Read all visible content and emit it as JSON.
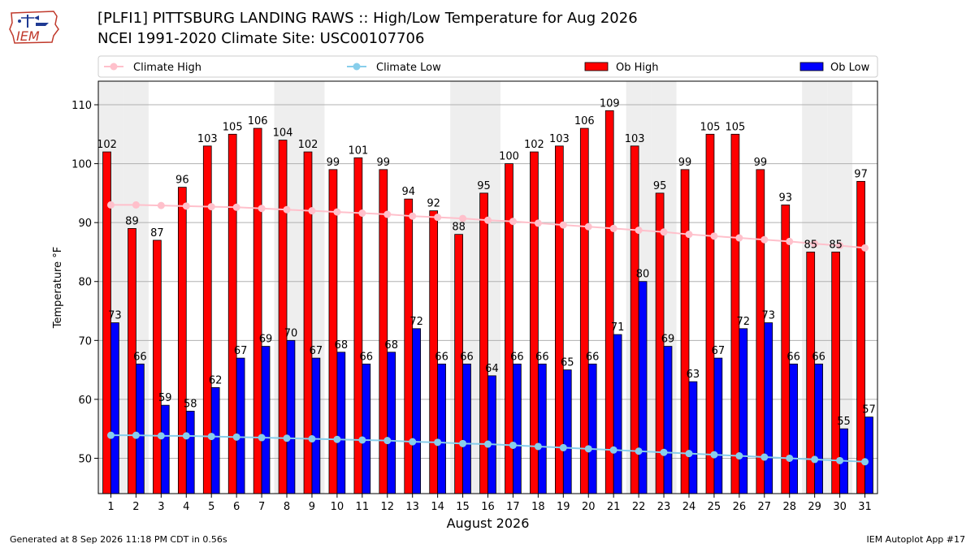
{
  "header": {
    "title_line1": "[PLFI1] PITTSBURG LANDING RAWS :: High/Low Temperature for Aug 2026",
    "title_line2": "NCEI 1991-2020 Climate Site: USC00107706",
    "logo_text": "IEM"
  },
  "footer": {
    "generated": "Generated at 8 Sep 2026 11:18 PM CDT in 0.56s",
    "app": "IEM Autoplot App #17"
  },
  "colors": {
    "ob_high": "#ff0000",
    "ob_low": "#0000ff",
    "climate_high": "#ffc0cb",
    "climate_low": "#87ceeb",
    "weekend_band": "#eeeeee",
    "grid": "#b0b0b0"
  },
  "chart_data": {
    "type": "bar",
    "xlabel": "August 2026",
    "ylabel": "Temperature °F",
    "ylim": [
      44,
      114
    ],
    "yticks": [
      50,
      60,
      70,
      80,
      90,
      100,
      110
    ],
    "grid": true,
    "legend_position": "top",
    "x": [
      1,
      2,
      3,
      4,
      5,
      6,
      7,
      8,
      9,
      10,
      11,
      12,
      13,
      14,
      15,
      16,
      17,
      18,
      19,
      20,
      21,
      22,
      23,
      24,
      25,
      26,
      27,
      28,
      29,
      30,
      31
    ],
    "shaded_days": [
      1,
      2,
      8,
      9,
      15,
      16,
      22,
      23,
      29,
      30
    ],
    "series": [
      {
        "name": "Climate High",
        "type": "line",
        "values": [
          93.0,
          93.0,
          92.9,
          92.8,
          92.7,
          92.6,
          92.4,
          92.2,
          92.0,
          91.8,
          91.6,
          91.4,
          91.1,
          90.9,
          90.7,
          90.4,
          90.2,
          89.9,
          89.6,
          89.3,
          89.0,
          88.7,
          88.4,
          88.0,
          87.7,
          87.4,
          87.1,
          86.8,
          86.4,
          86.1,
          85.7
        ]
      },
      {
        "name": "Climate Low",
        "type": "line",
        "values": [
          53.9,
          53.9,
          53.8,
          53.8,
          53.7,
          53.6,
          53.5,
          53.4,
          53.3,
          53.2,
          53.1,
          53.0,
          52.8,
          52.7,
          52.5,
          52.4,
          52.2,
          52.0,
          51.8,
          51.6,
          51.4,
          51.2,
          51.0,
          50.8,
          50.6,
          50.4,
          50.2,
          50.0,
          49.8,
          49.6,
          49.4
        ]
      },
      {
        "name": "Ob High",
        "type": "bar",
        "values": [
          102,
          89,
          87,
          96,
          103,
          105,
          106,
          104,
          102,
          99,
          101,
          99,
          94,
          92,
          88,
          95,
          100,
          102,
          103,
          106,
          109,
          103,
          95,
          99,
          105,
          105,
          99,
          93,
          85,
          85,
          97
        ]
      },
      {
        "name": "Ob Low",
        "type": "bar",
        "values": [
          73,
          66,
          59,
          58,
          62,
          67,
          69,
          70,
          67,
          68,
          66,
          68,
          72,
          66,
          66,
          64,
          66,
          66,
          65,
          66,
          71,
          80,
          69,
          63,
          67,
          72,
          73,
          66,
          66,
          55,
          57
        ]
      }
    ]
  }
}
